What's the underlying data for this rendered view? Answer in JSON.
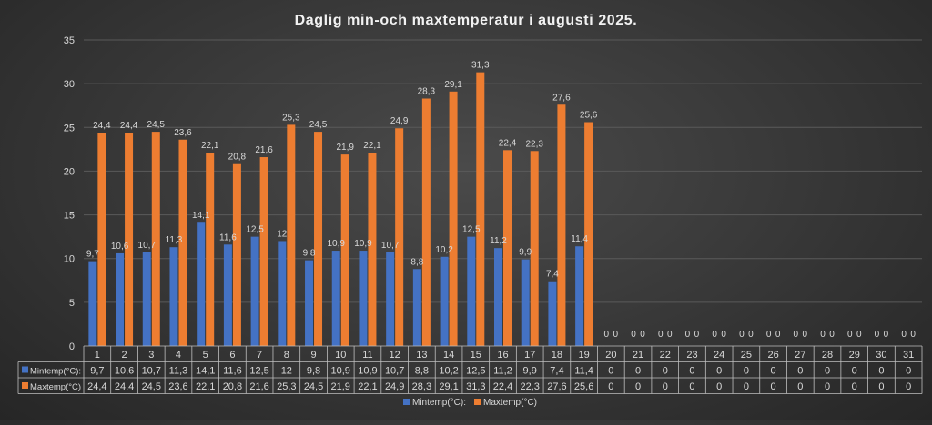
{
  "chart_data": {
    "type": "bar",
    "title": "Daglig min-och maxtemperatur i augusti 2025.",
    "xlabel": "",
    "ylabel": "",
    "ylim": [
      0,
      35
    ],
    "yticks": [
      0,
      5,
      10,
      15,
      20,
      25,
      30,
      35
    ],
    "grid": true,
    "legend_position": "bottom",
    "categories": [
      "1",
      "2",
      "3",
      "4",
      "5",
      "6",
      "7",
      "8",
      "9",
      "10",
      "11",
      "12",
      "13",
      "14",
      "15",
      "16",
      "17",
      "18",
      "19",
      "20",
      "21",
      "22",
      "23",
      "24",
      "25",
      "26",
      "27",
      "28",
      "29",
      "30",
      "31"
    ],
    "series": [
      {
        "name": "Mintemp(°C):",
        "color": "#4472c4",
        "values": [
          9.7,
          10.6,
          10.7,
          11.3,
          14.1,
          11.6,
          12.5,
          12,
          9.8,
          10.9,
          10.9,
          10.7,
          8.8,
          10.2,
          12.5,
          11.2,
          9.9,
          7.4,
          11.4,
          0,
          0,
          0,
          0,
          0,
          0,
          0,
          0,
          0,
          0,
          0,
          0
        ],
        "labels": [
          "9,7",
          "10,6",
          "10,7",
          "11,3",
          "14,1",
          "11,6",
          "12,5",
          "12",
          "9,8",
          "10,9",
          "10,9",
          "10,7",
          "8,8",
          "10,2",
          "12,5",
          "11,2",
          "9,9",
          "7,4",
          "11,4",
          "0",
          "0",
          "0",
          "0",
          "0",
          "0",
          "0",
          "0",
          "0",
          "0",
          "0",
          "0"
        ]
      },
      {
        "name": "Maxtemp(°C)",
        "color": "#ed7d31",
        "values": [
          24.4,
          24.4,
          24.5,
          23.6,
          22.1,
          20.8,
          21.6,
          25.3,
          24.5,
          21.9,
          22.1,
          24.9,
          28.3,
          29.1,
          31.3,
          22.4,
          22.3,
          27.6,
          25.6,
          0,
          0,
          0,
          0,
          0,
          0,
          0,
          0,
          0,
          0,
          0,
          0
        ],
        "labels": [
          "24,4",
          "24,4",
          "24,5",
          "23,6",
          "22,1",
          "20,8",
          "21,6",
          "25,3",
          "24,5",
          "21,9",
          "22,1",
          "24,9",
          "28,3",
          "29,1",
          "31,3",
          "22,4",
          "22,3",
          "27,6",
          "25,6",
          "0",
          "0",
          "0",
          "0",
          "0",
          "0",
          "0",
          "0",
          "0",
          "0",
          "0",
          "0"
        ]
      }
    ]
  }
}
